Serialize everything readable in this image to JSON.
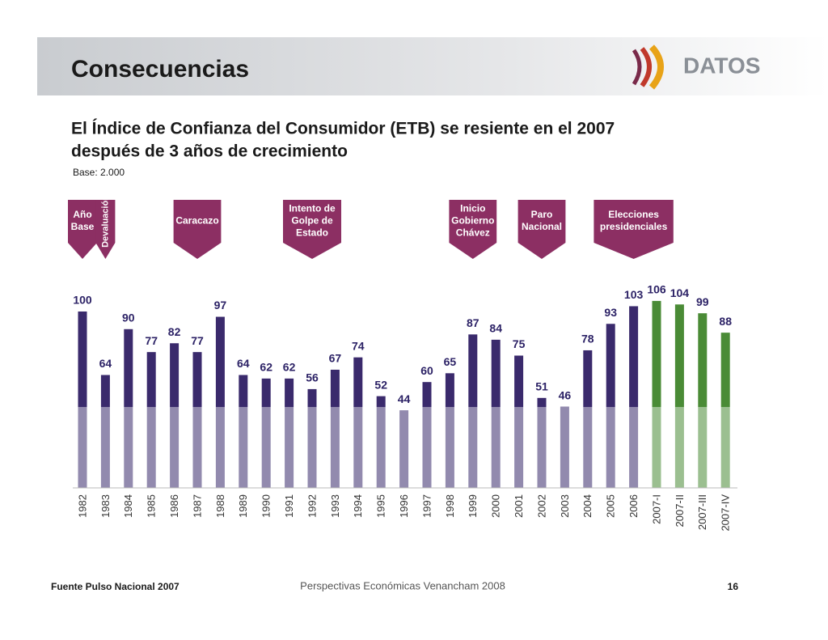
{
  "header": {
    "title": "Consecuencias",
    "logo": "DATOS"
  },
  "subtitle": [
    "El Índice de Confianza del Consumidor (ETB) se resiente en el 2007",
    "después de 3 años de crecimiento"
  ],
  "note": "Base: 2.000",
  "chart_data": {
    "type": "bar",
    "categories": [
      "1982",
      "1983",
      "1984",
      "1985",
      "1986",
      "1987",
      "1988",
      "1989",
      "1990",
      "1991",
      "1992",
      "1993",
      "1994",
      "1995",
      "1996",
      "1997",
      "1998",
      "1999",
      "2000",
      "2001",
      "2002",
      "2003",
      "2004",
      "2005",
      "2006",
      "2007-I",
      "2007-II",
      "2007-III",
      "2007-IV"
    ],
    "values": [
      100,
      64,
      90,
      77,
      82,
      77,
      97,
      64,
      62,
      62,
      56,
      67,
      74,
      52,
      44,
      60,
      65,
      87,
      84,
      75,
      51,
      46,
      78,
      93,
      103,
      106,
      104,
      99,
      88
    ],
    "colors": [
      "#3a2a6c",
      "#3a2a6c",
      "#3a2a6c",
      "#3a2a6c",
      "#3a2a6c",
      "#3a2a6c",
      "#3a2a6c",
      "#3a2a6c",
      "#3a2a6c",
      "#3a2a6c",
      "#3a2a6c",
      "#3a2a6c",
      "#3a2a6c",
      "#3a2a6c",
      "#3a2a6c",
      "#3a2a6c",
      "#3a2a6c",
      "#3a2a6c",
      "#3a2a6c",
      "#3a2a6c",
      "#3a2a6c",
      "#3a2a6c",
      "#3a2a6c",
      "#3a2a6c",
      "#3a2a6c",
      "#4a8b36",
      "#4a8b36",
      "#4a8b36",
      "#4a8b36"
    ],
    "annotations": [
      {
        "category": "1982",
        "lines": [
          "Año",
          "Base"
        ]
      },
      {
        "category": "1983",
        "lines": [
          "Devaluación"
        ],
        "vertical": true
      },
      {
        "category": "1987",
        "lines": [
          "Caracazo"
        ]
      },
      {
        "category": "1992",
        "lines": [
          "Intento de",
          "Golpe de",
          "Estado"
        ]
      },
      {
        "category": "1999",
        "lines": [
          "Inicio",
          "Gobierno",
          "Chávez"
        ]
      },
      {
        "category": "2002",
        "lines": [
          "Paro",
          "Nacional"
        ]
      },
      {
        "category": "2006",
        "lines": [
          "Elecciones",
          "presidenciales"
        ]
      }
    ]
  },
  "footer": {
    "source": "Fuente Pulso Nacional 2007",
    "center": "Perspectivas Económicas Venancham 2008",
    "page": "16"
  }
}
